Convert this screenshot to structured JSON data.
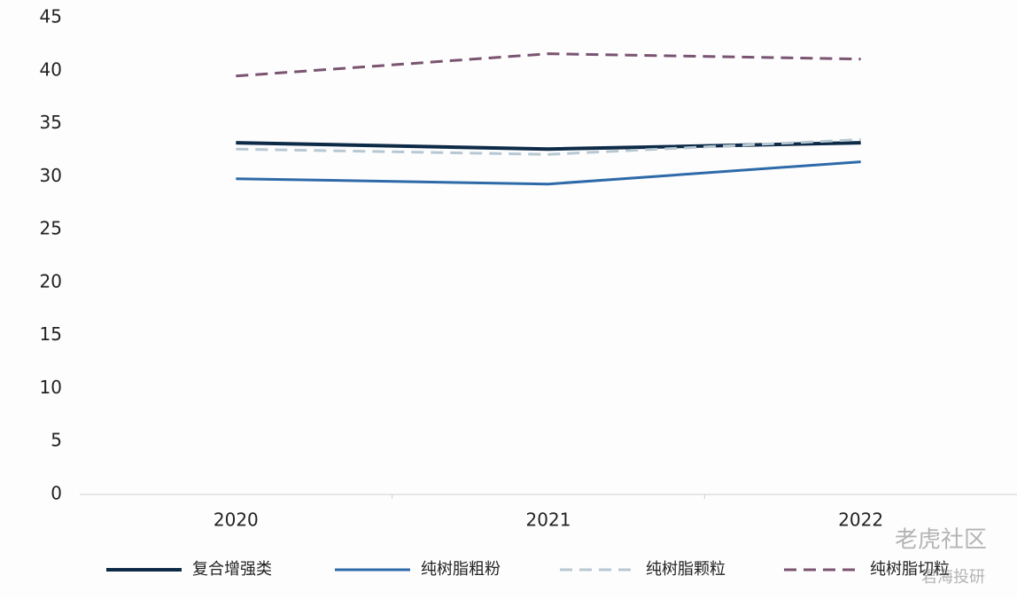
{
  "chart_data": {
    "type": "line",
    "categories": [
      "2020",
      "2021",
      "2022"
    ],
    "series": [
      {
        "name": "复合增强类",
        "color": "#0d2a47",
        "style": "solid",
        "width": 4,
        "values": [
          33.2,
          32.6,
          33.2
        ]
      },
      {
        "name": "纯树脂粗粉",
        "color": "#2e6aa8",
        "style": "solid",
        "width": 3,
        "values": [
          29.8,
          29.3,
          31.4
        ]
      },
      {
        "name": "纯树脂颗粒",
        "color": "#b8c8d2",
        "style": "dashed",
        "width": 3,
        "values": [
          32.6,
          32.1,
          33.5
        ]
      },
      {
        "name": "纯树脂切粒",
        "color": "#7a5470",
        "style": "dashed",
        "width": 3,
        "values": [
          39.5,
          41.6,
          41.1
        ]
      }
    ],
    "ylim": [
      0,
      45
    ],
    "yticks": [
      0,
      5,
      10,
      15,
      20,
      25,
      30,
      35,
      40,
      45
    ],
    "grid": false,
    "legend": "bottom",
    "watermark": [
      "老虎社区",
      "君海投研"
    ]
  }
}
